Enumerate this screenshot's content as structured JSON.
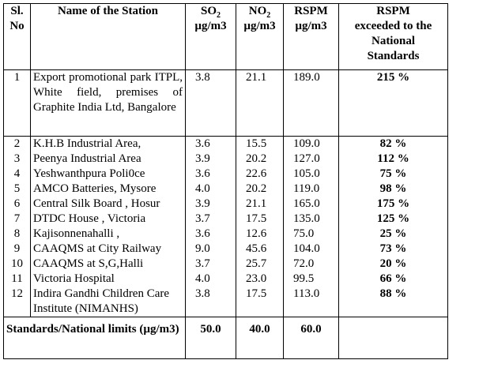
{
  "headers": {
    "sl_line1": "Sl.",
    "sl_line2": "No",
    "name": "Name of the Station",
    "so2_main": "SO",
    "so2_sub": "2",
    "so2_unit": "µg/m3",
    "no2_main": "NO",
    "no2_sub": "2",
    "no2_unit": "µg/m3",
    "rspm_main": "RSPM",
    "rspm_unit": "µg/m3",
    "exceed_line1": "RSPM",
    "exceed_line2": "exceeded to the",
    "exceed_line3": "National",
    "exceed_line4": "Standards"
  },
  "rows": [
    {
      "sl": "1",
      "name": "Export promotional park ITPL, White field, premises of Graphite India Ltd, Bangalore",
      "so2": "3.8",
      "no2": "21.1",
      "rspm": "189.0",
      "exceed": "215 %"
    },
    {
      "sl": "2",
      "name": "K.H.B Industrial Area,",
      "so2": "3.6",
      "no2": "15.5",
      "rspm": "109.0",
      "exceed": "82 %"
    },
    {
      "sl": "3",
      "name": "Peenya Industrial Area",
      "so2": "3.9",
      "no2": "20.2",
      "rspm": "127.0",
      "exceed": "112 %"
    },
    {
      "sl": "4",
      "name": "Yeshwanthpura Poli0ce",
      "so2": "3.6",
      "no2": "22.6",
      "rspm": "105.0",
      "exceed": "75 %"
    },
    {
      "sl": "5",
      "name": "AMCO Batteries, Mysore",
      "so2": "4.0",
      "no2": "20.2",
      "rspm": "119.0",
      "exceed": "98 %"
    },
    {
      "sl": "6",
      "name": "Central Silk Board , Hosur",
      "so2": "3.9",
      "no2": "21.1",
      "rspm": "165.0",
      "exceed": "175 %"
    },
    {
      "sl": "7",
      "name": "DTDC House , Victoria",
      "so2": "3.7",
      "no2": "17.5",
      "rspm": "135.0",
      "exceed": "125 %"
    },
    {
      "sl": "8",
      "name": "Kajisonnenahalli ,",
      "so2": "3.6",
      "no2": "12.6",
      "rspm": "75.0",
      "exceed": "25 %"
    },
    {
      "sl": "9",
      "name": "CAAQMS at City Railway",
      "so2": "9.0",
      "no2": "45.6",
      "rspm": "104.0",
      "exceed": "73 %"
    },
    {
      "sl": "10",
      "name": "CAAQMS at S,G,Halli",
      "so2": "3.7",
      "no2": "25.7",
      "rspm": "72.0",
      "exceed": "20 %"
    },
    {
      "sl": "11",
      "name": "Victoria Hospital",
      "so2": "4.0",
      "no2": "23.0",
      "rspm": "99.5",
      "exceed": "66 %"
    },
    {
      "sl": "12",
      "name": "Indira Gandhi Children Care Institute (NIMANHS)",
      "so2": "3.8",
      "no2": "17.5",
      "rspm": "113.0",
      "exceed": "88 %"
    }
  ],
  "footer": {
    "label": "Standards/National limits (µg/m3)",
    "so2": "50.0",
    "no2": "40.0",
    "rspm": "60.0"
  }
}
